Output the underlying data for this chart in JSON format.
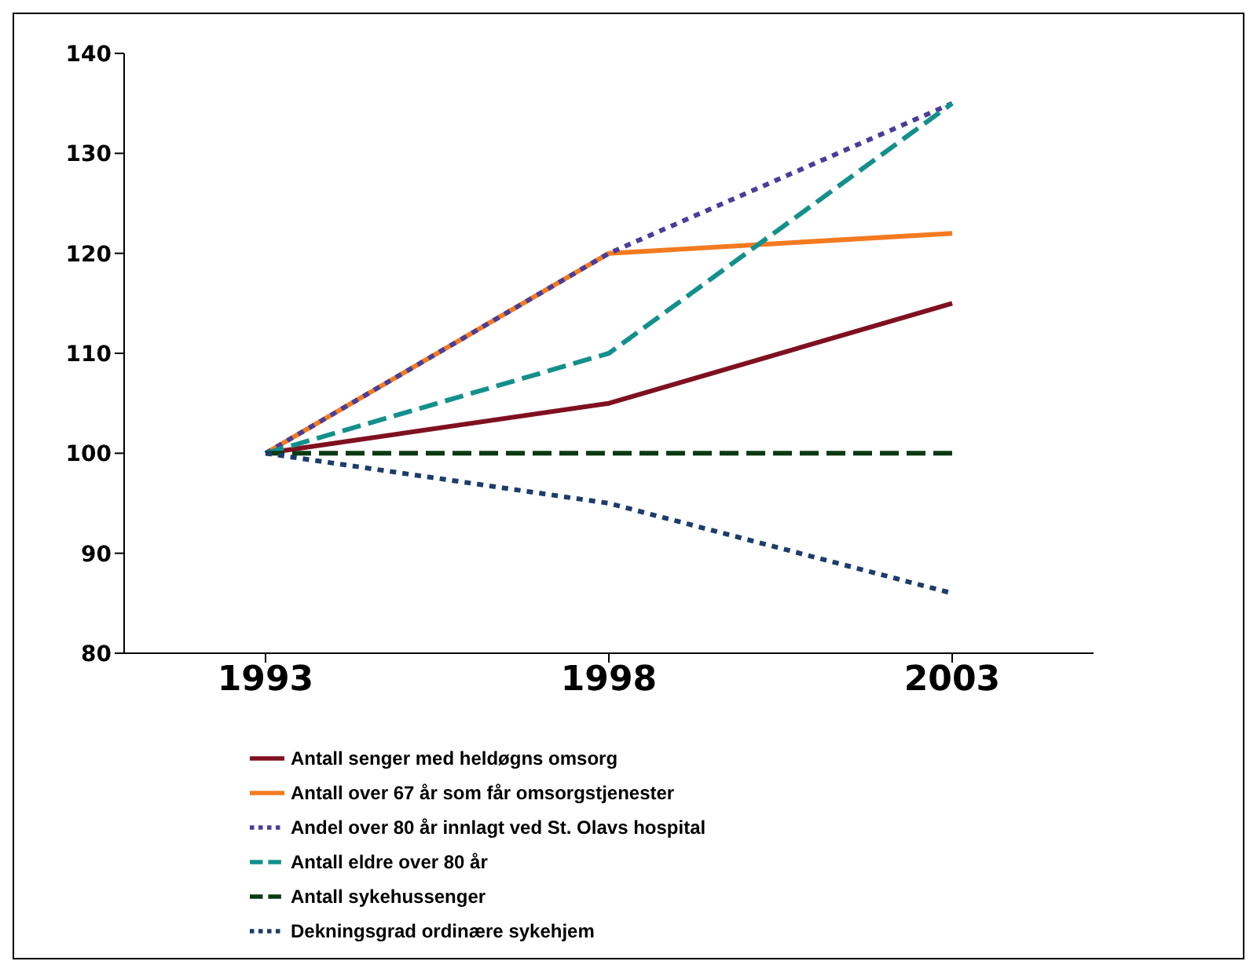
{
  "chart_data": {
    "type": "line",
    "categories": [
      "1993",
      "1998",
      "2003"
    ],
    "series": [
      {
        "name": "Antall senger med heldøgns omsorg",
        "color": "#7f1020",
        "values": [
          100,
          105,
          115
        ],
        "line_style": "solid"
      },
      {
        "name": "Antall over 67 år som får omsorgstjenester",
        "color": "#f47a20",
        "values": [
          100,
          120,
          122
        ],
        "line_style": "solid"
      },
      {
        "name": "Andel over 80 år innlagt ved St. Olavs hospital",
        "color": "#4a3d9a",
        "values": [
          100,
          120,
          135
        ],
        "line_style": "dotted"
      },
      {
        "name": "Antall eldre over 80 år",
        "color": "#14908c",
        "values": [
          100,
          110,
          135
        ],
        "line_style": "dashed"
      },
      {
        "name": "Antall sykehussenger",
        "color": "#0b3a12",
        "values": [
          100,
          100,
          100
        ],
        "line_style": "dashed"
      },
      {
        "name": "Dekningsgrad ordinære sykehjem",
        "color": "#1c3d6b",
        "values": [
          100,
          95,
          86
        ],
        "line_style": "dotted"
      }
    ],
    "ylim": [
      80,
      140
    ],
    "yticks": [
      80,
      90,
      100,
      110,
      120,
      130,
      140
    ],
    "grid": false,
    "legend": "bottom",
    "marker": "none"
  }
}
